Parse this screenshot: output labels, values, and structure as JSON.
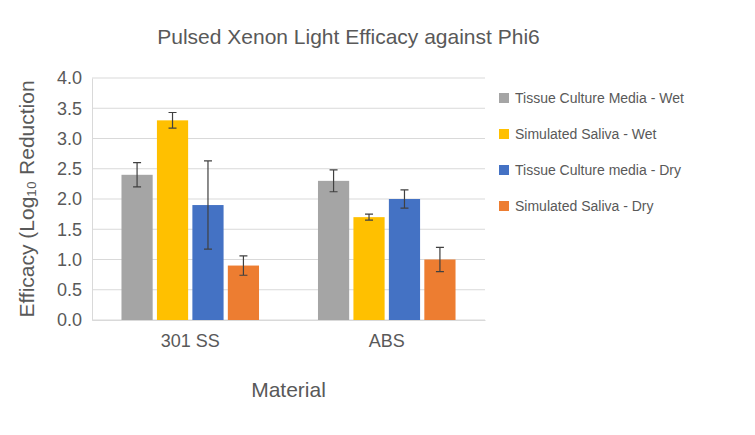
{
  "chart_data": {
    "type": "bar",
    "title": "Pulsed Xenon Light Efficacy against Phi6",
    "x_label": "Material",
    "y_label": "Efficacy (Log₁₀ Reduction",
    "categories": [
      "301 SS",
      "ABS"
    ],
    "series": [
      {
        "name": "Tissue Culture Media - Wet",
        "color": "#a5a5a5",
        "values": [
          2.4,
          2.3
        ],
        "errors": [
          0.2,
          0.18
        ]
      },
      {
        "name": "Simulated Saliva - Wet",
        "color": "#ffc000",
        "values": [
          3.3,
          1.7
        ],
        "errors": [
          0.13,
          0.05
        ]
      },
      {
        "name": "Tissue Culture media - Dry",
        "color": "#4472c4",
        "values": [
          1.9,
          2.0
        ],
        "errors": [
          0.73,
          0.15
        ]
      },
      {
        "name": "Simulated Saliva - Dry",
        "color": "#ed7d31",
        "values": [
          0.9,
          1.0
        ],
        "errors": [
          0.16,
          0.2
        ]
      }
    ],
    "ylim": [
      0,
      4
    ],
    "yticks": [
      {
        "value": 0,
        "label": "0.0"
      },
      {
        "value": 0.5,
        "label": "0.5"
      },
      {
        "value": 1,
        "label": "1.0"
      },
      {
        "value": 1.5,
        "label": "1.5"
      },
      {
        "value": 2,
        "label": "2.0"
      },
      {
        "value": 2.5,
        "label": "2.5"
      },
      {
        "value": 3,
        "label": "3.0"
      },
      {
        "value": 3.5,
        "label": "3.5"
      },
      {
        "value": 4,
        "label": "4.0"
      }
    ],
    "grid": true,
    "legend": "right"
  }
}
